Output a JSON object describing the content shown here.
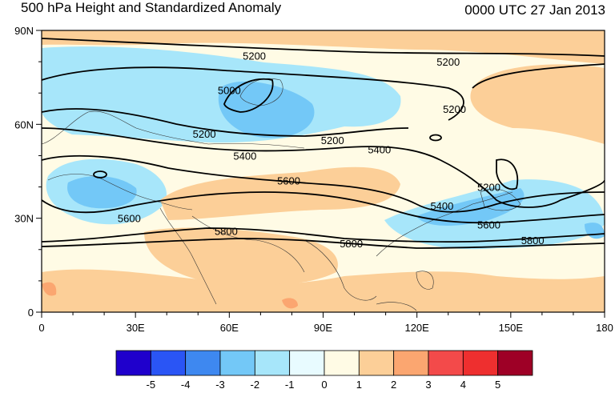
{
  "header": {
    "title": "500 hPa Height and Standardized Anomaly",
    "datetime": "0000 UTC 27 Jan 2013"
  },
  "map": {
    "lon_range": [
      0,
      180
    ],
    "lat_range": [
      0,
      90
    ],
    "x_ticks": [
      {
        "value": 0,
        "label": "0"
      },
      {
        "value": 30,
        "label": "30E"
      },
      {
        "value": 60,
        "label": "60E"
      },
      {
        "value": 90,
        "label": "90E"
      },
      {
        "value": 120,
        "label": "120E"
      },
      {
        "value": 150,
        "label": "150E"
      },
      {
        "value": 180,
        "label": "180"
      }
    ],
    "y_ticks": [
      {
        "value": 0,
        "label": "0"
      },
      {
        "value": 30,
        "label": "30N"
      },
      {
        "value": 60,
        "label": "60N"
      },
      {
        "value": 90,
        "label": "90N"
      }
    ],
    "contour_labels": [
      {
        "text": "5200",
        "lon": 68,
        "lat": 82
      },
      {
        "text": "5200",
        "lon": 130,
        "lat": 80
      },
      {
        "text": "5000",
        "lon": 60,
        "lat": 71
      },
      {
        "text": "5200",
        "lon": 52,
        "lat": 57
      },
      {
        "text": "5200",
        "lon": 93,
        "lat": 55
      },
      {
        "text": "5200",
        "lon": 132,
        "lat": 65
      },
      {
        "text": "5400",
        "lon": 65,
        "lat": 50
      },
      {
        "text": "5400",
        "lon": 108,
        "lat": 52
      },
      {
        "text": "5600",
        "lon": 79,
        "lat": 42
      },
      {
        "text": "5600",
        "lon": 28,
        "lat": 30
      },
      {
        "text": "5800",
        "lon": 59,
        "lat": 26
      },
      {
        "text": "5800",
        "lon": 99,
        "lat": 22
      },
      {
        "text": "5800",
        "lon": 157,
        "lat": 23
      },
      {
        "text": "5600",
        "lon": 143,
        "lat": 28
      },
      {
        "text": "5400",
        "lon": 128,
        "lat": 34
      },
      {
        "text": "5200",
        "lon": 143,
        "lat": 40
      }
    ]
  },
  "colorbar": {
    "labels": [
      "-5",
      "-4",
      "-3",
      "-2",
      "-1",
      "0",
      "1",
      "2",
      "3",
      "4",
      "5"
    ],
    "colors": [
      "#1f00cc",
      "#2a55f5",
      "#3e88f0",
      "#73c8f7",
      "#a7e6fa",
      "#e8fbff",
      "#fffbe5",
      "#fccf98",
      "#fba670",
      "#f34a4a",
      "#ee2f2f",
      "#9e0026"
    ]
  },
  "anomaly_colors": {
    "light_blue": "#a7e6fa",
    "blue": "#73c8f7",
    "pale_cyan": "#e8fbff",
    "pale_yellow": "#fffbe5",
    "orange": "#fccf98",
    "dark_orange": "#fba670",
    "red": "#f34a4a"
  }
}
